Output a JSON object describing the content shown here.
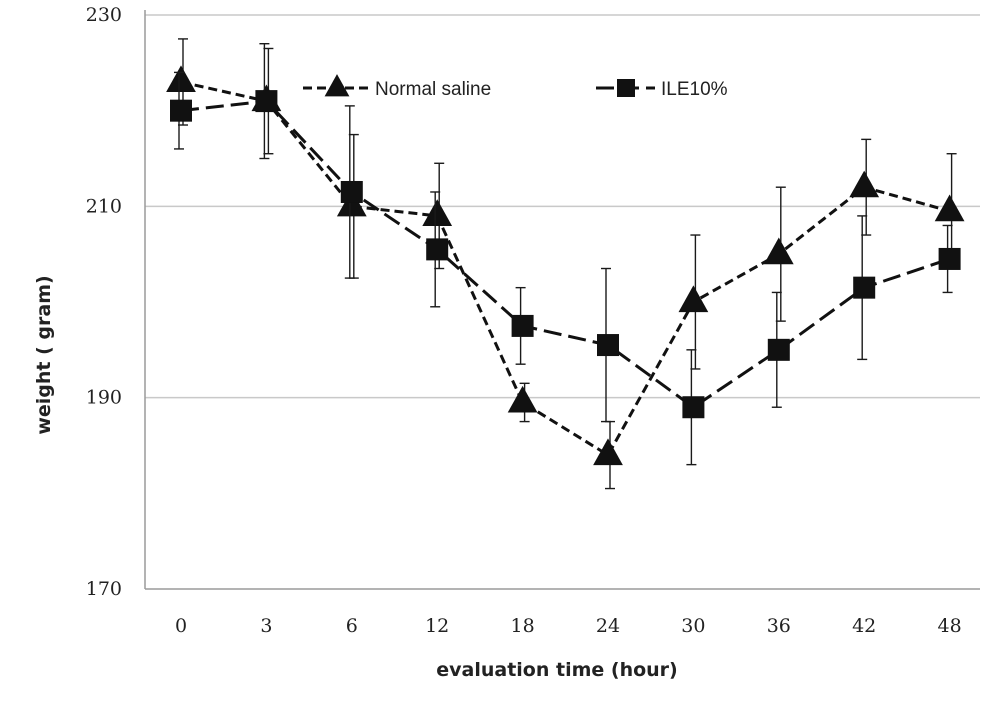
{
  "chart_data": {
    "type": "line",
    "title": "",
    "xlabel": "evaluation time  (hour)",
    "ylabel": "weight  ( gram)",
    "categories": [
      "0",
      "3",
      "6",
      "12",
      "18",
      "24",
      "30",
      "36",
      "42",
      "48"
    ],
    "ylim": [
      170,
      230
    ],
    "yticks": [
      170,
      190,
      210,
      230
    ],
    "grid": "horizontal",
    "legend_position": "top",
    "series": [
      {
        "name": "Normal saline",
        "marker": "triangle",
        "dash": "short-dash",
        "color": "#111111",
        "values": [
          223,
          221,
          210,
          209,
          189.5,
          184,
          200,
          205,
          212,
          209.5
        ],
        "errors": [
          4.5,
          5.5,
          7.5,
          5.5,
          2,
          3.5,
          7,
          7,
          5,
          6
        ]
      },
      {
        "name": "ILE10%",
        "marker": "square",
        "dash": "long-dash",
        "color": "#111111",
        "values": [
          220,
          221,
          211.5,
          205.5,
          197.5,
          195.5,
          189,
          195,
          201.5,
          204.5
        ],
        "errors": [
          4,
          6,
          9,
          6,
          4,
          8,
          6,
          6,
          7.5,
          3.5
        ]
      }
    ]
  }
}
